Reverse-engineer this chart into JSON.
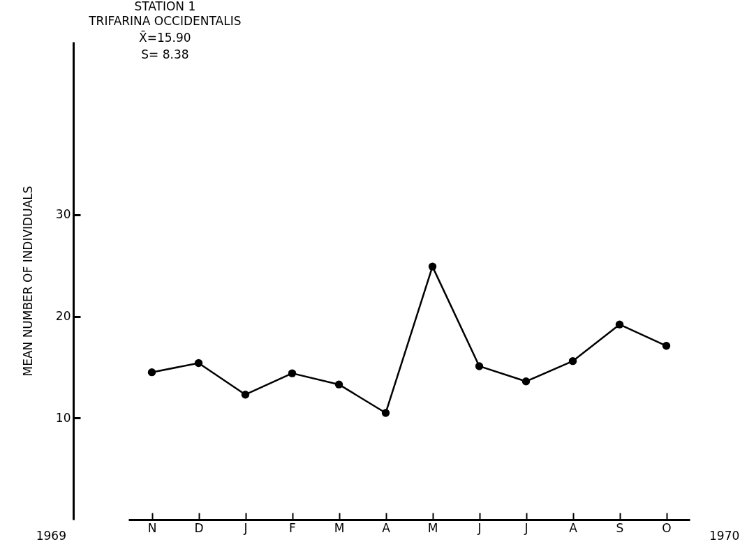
{
  "chart_data": {
    "type": "line",
    "title": "STATION 1",
    "subtitle": "TRIFARINA OCCIDENTALIS",
    "annotations": [
      "X̄=15.90",
      "S= 8.38",
      "1969",
      "1970"
    ],
    "ylabel": "MEAN NUMBER OF INDIVIDUALS",
    "categories": [
      "N",
      "D",
      "J",
      "F",
      "M",
      "A",
      "M",
      "J",
      "J",
      "A",
      "S",
      "O"
    ],
    "series": [
      {
        "color": "#000000",
        "values": [
          14.5,
          15.4,
          12.3,
          14.4,
          13.3,
          10.5,
          24.9,
          15.1,
          13.6,
          15.6,
          19.2,
          17.1
        ]
      }
    ],
    "ylim": [
      0,
      47
    ],
    "yticks": [
      10,
      20,
      30
    ],
    "marker": "circle",
    "line_style": "solid"
  }
}
